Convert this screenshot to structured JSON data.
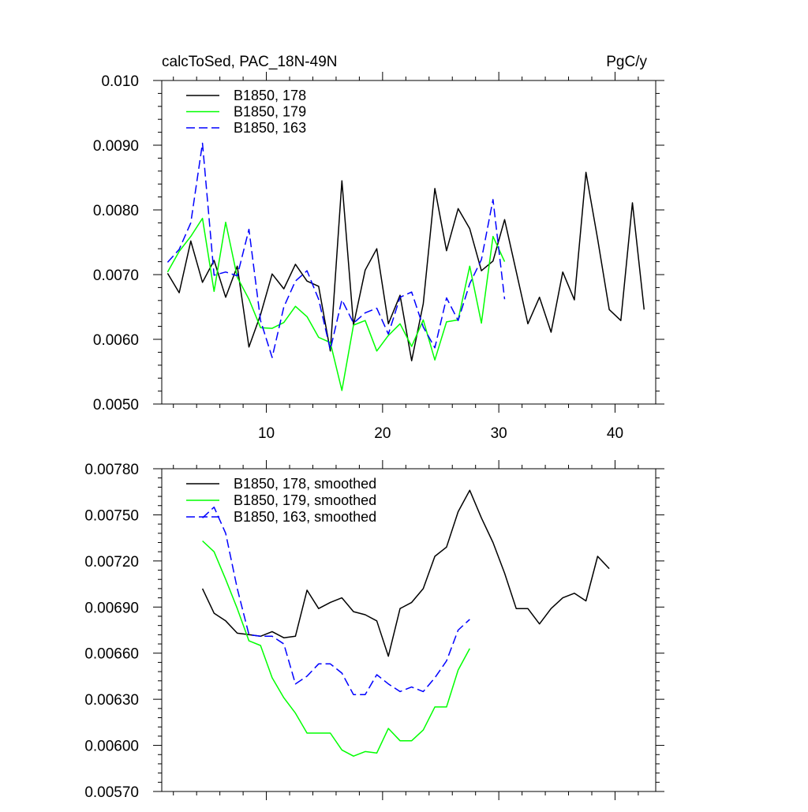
{
  "chart_data": [
    {
      "type": "line",
      "title": "calcToSed, PAC_18N-49N",
      "units": "PgC/y",
      "xlim": [
        1,
        43.5
      ],
      "ylim": [
        0.005,
        0.01
      ],
      "x_ticks": [
        10,
        20,
        30,
        40
      ],
      "x_tick_labels": [
        "10",
        "20",
        "30",
        "40"
      ],
      "y_ticks": [
        0.005,
        0.006,
        0.007,
        0.008,
        0.009,
        0.01
      ],
      "y_tick_labels": [
        "0.0050",
        "0.0060",
        "0.0070",
        "0.0080",
        "0.0090",
        "0.010"
      ],
      "legend_position": "top-left",
      "series": [
        {
          "name": "B1850, 178",
          "color": "#000000",
          "dash": "solid",
          "x": [
            1.5,
            2.5,
            3.5,
            4.5,
            5.5,
            6.5,
            7.5,
            8.5,
            9.5,
            10.5,
            11.5,
            12.5,
            13.5,
            14.5,
            15.5,
            16.5,
            17.5,
            18.5,
            19.5,
            20.5,
            21.5,
            22.5,
            23.5,
            24.5,
            25.5,
            26.5,
            27.5,
            28.5,
            29.5,
            30.5,
            31.5,
            32.5,
            33.5,
            34.5,
            35.5,
            36.5,
            37.5,
            38.5,
            39.5,
            40.5,
            41.5,
            42.5
          ],
          "values": [
            0.00702,
            0.00672,
            0.00752,
            0.00688,
            0.00722,
            0.00665,
            0.00713,
            0.00588,
            0.00638,
            0.00701,
            0.00678,
            0.00716,
            0.0069,
            0.00682,
            0.00582,
            0.00845,
            0.00622,
            0.00707,
            0.0074,
            0.00624,
            0.00668,
            0.00567,
            0.00655,
            0.00833,
            0.00737,
            0.00802,
            0.00771,
            0.00706,
            0.00721,
            0.00785,
            0.00705,
            0.00624,
            0.00665,
            0.00611,
            0.00704,
            0.00661,
            0.00858,
            0.00755,
            0.00646,
            0.00629,
            0.00811,
            0.00646
          ]
        },
        {
          "name": "B1850, 179",
          "color": "#00ff00",
          "dash": "solid",
          "x": [
            1.5,
            2.5,
            3.5,
            4.5,
            5.5,
            6.5,
            7.5,
            8.5,
            9.5,
            10.5,
            11.5,
            12.5,
            13.5,
            14.5,
            15.5,
            16.5,
            17.5,
            18.5,
            19.5,
            20.5,
            21.5,
            22.5,
            23.5,
            24.5,
            25.5,
            26.5,
            27.5,
            28.5,
            29.5,
            30.5
          ],
          "values": [
            0.00704,
            0.00736,
            0.00759,
            0.00787,
            0.00674,
            0.00781,
            0.00696,
            0.00662,
            0.00618,
            0.00617,
            0.00626,
            0.00651,
            0.00635,
            0.00603,
            0.00595,
            0.00521,
            0.00622,
            0.00629,
            0.00582,
            0.00606,
            0.00624,
            0.00589,
            0.0063,
            0.00568,
            0.00627,
            0.0063,
            0.00713,
            0.00625,
            0.00759,
            0.0072
          ]
        },
        {
          "name": "B1850, 163",
          "color": "#0000ff",
          "dash": "dashed",
          "x": [
            1.5,
            2.5,
            3.5,
            4.5,
            5.5,
            6.5,
            7.5,
            8.5,
            9.5,
            10.5,
            11.5,
            12.5,
            13.5,
            14.5,
            15.5,
            16.5,
            17.5,
            18.5,
            19.5,
            20.5,
            21.5,
            22.5,
            23.5,
            24.5,
            25.5,
            26.5,
            27.5,
            28.5,
            29.5,
            30.5
          ],
          "values": [
            0.00719,
            0.00739,
            0.0078,
            0.00903,
            0.00699,
            0.00704,
            0.00698,
            0.0077,
            0.00629,
            0.00572,
            0.0065,
            0.0069,
            0.00706,
            0.00662,
            0.00584,
            0.00661,
            0.00625,
            0.00641,
            0.00648,
            0.00608,
            0.00665,
            0.00673,
            0.00619,
            0.00587,
            0.00664,
            0.00629,
            0.00686,
            0.00723,
            0.00816,
            0.00662
          ]
        }
      ]
    },
    {
      "type": "line",
      "xlim": [
        1,
        43.5
      ],
      "ylim": [
        0.0057,
        0.0078
      ],
      "x_ticks": [
        10,
        20,
        30,
        40
      ],
      "y_ticks": [
        0.0057,
        0.006,
        0.0063,
        0.0066,
        0.0069,
        0.0072,
        0.0075,
        0.0078
      ],
      "y_tick_labels": [
        "0.00570",
        "0.00600",
        "0.00630",
        "0.00660",
        "0.00690",
        "0.00720",
        "0.00750",
        "0.00780"
      ],
      "legend_position": "top-left",
      "series": [
        {
          "name": "B1850, 178, smoothed",
          "color": "#000000",
          "dash": "solid",
          "x": [
            4.5,
            5.5,
            6.5,
            7.5,
            8.5,
            9.5,
            10.5,
            11.5,
            12.5,
            13.5,
            14.5,
            15.5,
            16.5,
            17.5,
            18.5,
            19.5,
            20.5,
            21.5,
            22.5,
            23.5,
            24.5,
            25.5,
            26.5,
            27.5,
            28.5,
            29.5,
            30.5,
            31.5,
            32.5,
            33.5,
            34.5,
            35.5,
            36.5,
            37.5,
            38.5,
            39.5
          ],
          "values": [
            0.00702,
            0.00686,
            0.00681,
            0.00673,
            0.00672,
            0.00671,
            0.00674,
            0.0067,
            0.00671,
            0.00701,
            0.00689,
            0.00693,
            0.00696,
            0.00687,
            0.00685,
            0.00681,
            0.00658,
            0.00689,
            0.00693,
            0.00702,
            0.00723,
            0.00729,
            0.00752,
            0.00766,
            0.00748,
            0.00732,
            0.00712,
            0.00689,
            0.00689,
            0.00679,
            0.00689,
            0.00696,
            0.00699,
            0.00694,
            0.00723,
            0.00715
          ]
        },
        {
          "name": "B1850, 179, smoothed",
          "color": "#00ff00",
          "dash": "solid",
          "x": [
            4.5,
            5.5,
            6.5,
            7.5,
            8.5,
            9.5,
            10.5,
            11.5,
            12.5,
            13.5,
            14.5,
            15.5,
            16.5,
            17.5,
            18.5,
            19.5,
            20.5,
            21.5,
            22.5,
            23.5,
            24.5,
            25.5,
            26.5,
            27.5
          ],
          "values": [
            0.00733,
            0.00726,
            0.00708,
            0.00689,
            0.00668,
            0.00665,
            0.00644,
            0.00631,
            0.00621,
            0.00608,
            0.00608,
            0.00608,
            0.00597,
            0.00593,
            0.00596,
            0.00595,
            0.00611,
            0.00603,
            0.00603,
            0.0061,
            0.00625,
            0.00625,
            0.00649,
            0.00663
          ]
        },
        {
          "name": "B1850, 163, smoothed",
          "color": "#0000ff",
          "dash": "dashed",
          "x": [
            4.5,
            5.5,
            6.5,
            7.5,
            8.5,
            9.5,
            10.5,
            11.5,
            12.5,
            13.5,
            14.5,
            15.5,
            16.5,
            17.5,
            18.5,
            19.5,
            20.5,
            21.5,
            22.5,
            23.5,
            24.5,
            25.5,
            26.5,
            27.5
          ],
          "values": [
            0.00748,
            0.00755,
            0.00738,
            0.00702,
            0.00672,
            0.00671,
            0.00671,
            0.00666,
            0.0064,
            0.00645,
            0.00653,
            0.00653,
            0.00647,
            0.00633,
            0.00633,
            0.00646,
            0.0064,
            0.00635,
            0.00638,
            0.00635,
            0.00644,
            0.00655,
            0.00675,
            0.00682
          ]
        }
      ]
    }
  ]
}
